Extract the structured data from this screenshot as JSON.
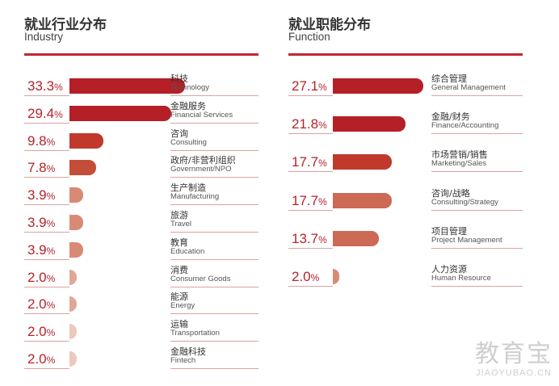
{
  "colors": {
    "accent": "#c0282f",
    "text_red": "#b3232b",
    "shades": [
      "#b51f26",
      "#c0392b",
      "#c44d3a",
      "#cc6a55",
      "#d98a75",
      "#e0a896",
      "#ecc8bd"
    ]
  },
  "watermark": {
    "cn": "教育宝",
    "en": "JIAOYUBAO.CN"
  },
  "chart_data": [
    {
      "type": "bar",
      "title": "就业行业分布",
      "subtitle": "Industry",
      "xlim": [
        0,
        33.3
      ],
      "unit": "%",
      "categories": [
        {
          "cn": "科技",
          "en": "Technology"
        },
        {
          "cn": "金融服务",
          "en": "Financial Services"
        },
        {
          "cn": "咨询",
          "en": "Consulting"
        },
        {
          "cn": "政府/非营利组织",
          "en": "Government/NPO"
        },
        {
          "cn": "生产制造",
          "en": "Manufacturing"
        },
        {
          "cn": "旅游",
          "en": "Travel"
        },
        {
          "cn": "教育",
          "en": "Education"
        },
        {
          "cn": "消费",
          "en": "Consumer Goods"
        },
        {
          "cn": "能源",
          "en": "Energy"
        },
        {
          "cn": "运输",
          "en": "Transportation"
        },
        {
          "cn": "金融科技",
          "en": "Fintech"
        }
      ],
      "values": [
        33.3,
        29.4,
        9.8,
        7.8,
        3.9,
        3.9,
        3.9,
        2.0,
        2.0,
        2.0,
        2.0
      ],
      "labels": [
        "33.3",
        "29.4",
        "9.8",
        "7.8",
        "3.9",
        "3.9",
        "3.9",
        "2.0",
        "2.0",
        "2.0",
        "2.0"
      ],
      "bar_colors": [
        "#b51f26",
        "#b51f26",
        "#c0392b",
        "#c44d3a",
        "#d98a75",
        "#d98a75",
        "#d98a75",
        "#e0a896",
        "#e0a896",
        "#ecc8bd",
        "#ecc8bd"
      ]
    },
    {
      "type": "bar",
      "title": "就业职能分布",
      "subtitle": "Function",
      "xlim": [
        0,
        27.1
      ],
      "unit": "%",
      "categories": [
        {
          "cn": "综合管理",
          "en": "General Management"
        },
        {
          "cn": "金融/财务",
          "en": "Finance/Accounting"
        },
        {
          "cn": "市场营销/销售",
          "en": "Marketing/Sales"
        },
        {
          "cn": "咨询/战略",
          "en": "Consulting/Strategy"
        },
        {
          "cn": "项目管理",
          "en": "Project Management"
        },
        {
          "cn": "人力资源",
          "en": "Human Resource"
        }
      ],
      "values": [
        27.1,
        21.8,
        17.7,
        17.7,
        13.7,
        2.0
      ],
      "labels": [
        "27.1",
        "21.8",
        "17.7",
        "17.7",
        "13.7",
        "2.0"
      ],
      "bar_colors": [
        "#b51f26",
        "#b51f26",
        "#c0392b",
        "#cc6a55",
        "#cc6a55",
        "#d98a75"
      ]
    }
  ]
}
